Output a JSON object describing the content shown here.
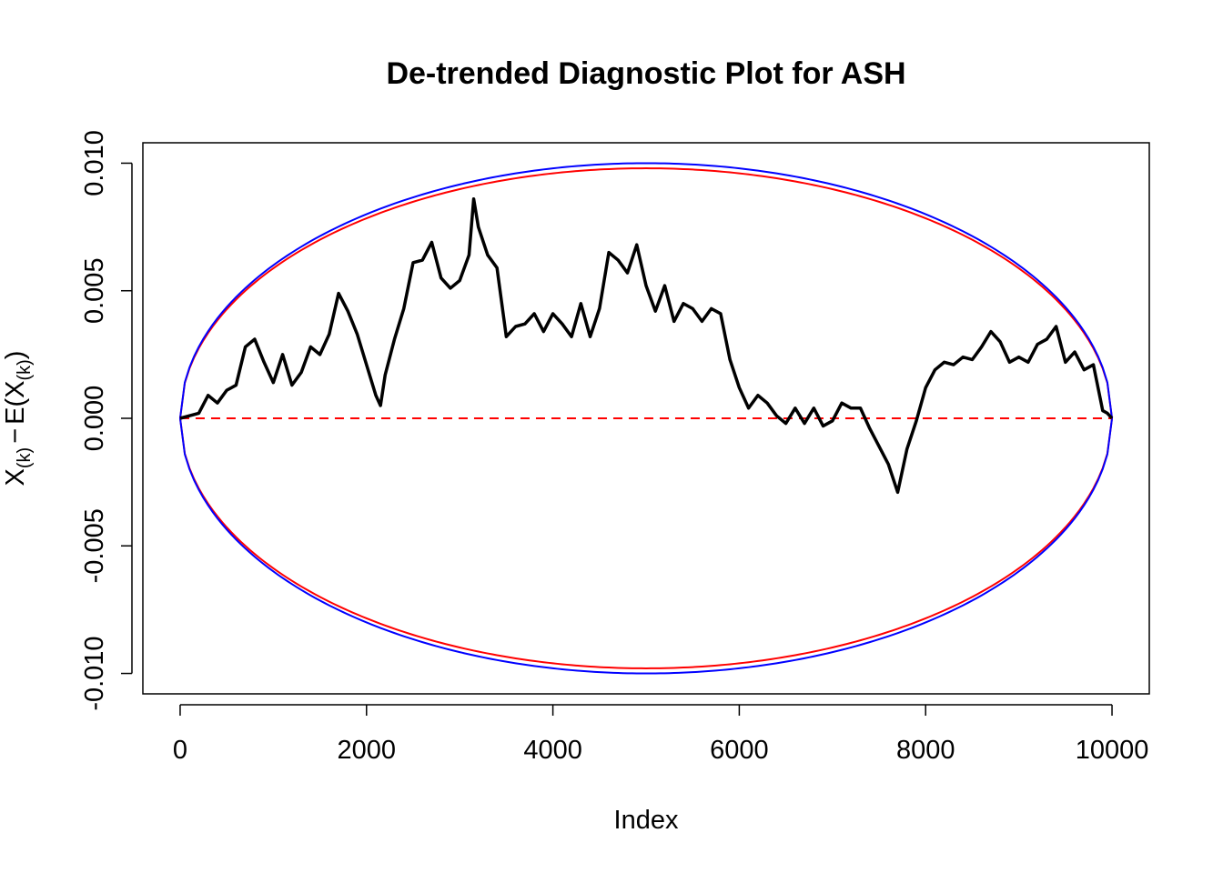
{
  "chart_data": {
    "type": "line",
    "title": "De-trended Diagnostic Plot for ASH",
    "xlabel": "Index",
    "ylabel": {
      "main": "X",
      "sub": "(k)",
      "minus": "−",
      "expect": "E(X",
      "expect_sub": "(k)",
      "close": ")"
    },
    "xlim": [
      -400,
      10400
    ],
    "ylim": [
      -0.0108,
      0.0108
    ],
    "x_ticks": [
      0,
      2000,
      4000,
      6000,
      8000,
      10000
    ],
    "x_tick_labels": [
      "0",
      "2000",
      "4000",
      "6000",
      "8000",
      "10000"
    ],
    "y_ticks": [
      -0.01,
      -0.005,
      0.0,
      0.005,
      0.01
    ],
    "y_tick_labels": [
      "-0.010",
      "-0.005",
      "0.000",
      "0.005",
      "0.010"
    ],
    "colors": {
      "data": "#000000",
      "envelope_blue": "#0000ff",
      "envelope_red": "#ff0000",
      "reference": "#ff0000"
    },
    "envelope_blue": {
      "x_range": [
        0,
        10000
      ],
      "amplitude": 0.01
    },
    "envelope_red": {
      "x_range": [
        0,
        10000
      ],
      "amplitude": 0.0098
    },
    "reference_line": {
      "y": 0.0,
      "style": "dashed"
    },
    "series": [
      {
        "x": [
          0,
          100,
          200,
          300,
          400,
          500,
          600,
          700,
          800,
          900,
          1000,
          1100,
          1200,
          1300,
          1400,
          1500,
          1600,
          1700,
          1800,
          1900,
          2000,
          2100,
          2150,
          2200,
          2300,
          2400,
          2500,
          2600,
          2700,
          2800,
          2900,
          3000,
          3100,
          3150,
          3200,
          3300,
          3400,
          3500,
          3600,
          3700,
          3800,
          3900,
          4000,
          4100,
          4200,
          4300,
          4400,
          4500,
          4600,
          4700,
          4800,
          4900,
          5000,
          5100,
          5200,
          5300,
          5400,
          5500,
          5600,
          5700,
          5800,
          5900,
          6000,
          6100,
          6200,
          6300,
          6400,
          6500,
          6600,
          6700,
          6800,
          6900,
          7000,
          7100,
          7200,
          7300,
          7400,
          7500,
          7600,
          7700,
          7800,
          7900,
          8000,
          8100,
          8200,
          8300,
          8400,
          8500,
          8600,
          8700,
          8800,
          8900,
          9000,
          9100,
          9200,
          9300,
          9400,
          9500,
          9600,
          9700,
          9800,
          9900,
          9950,
          10000
        ],
        "y": [
          0.0,
          0.0001,
          0.0002,
          0.0009,
          0.0006,
          0.0011,
          0.0013,
          0.0028,
          0.0031,
          0.0022,
          0.0014,
          0.0025,
          0.0013,
          0.0018,
          0.0028,
          0.0025,
          0.0033,
          0.0049,
          0.0042,
          0.0033,
          0.0021,
          0.0009,
          0.0005,
          0.0017,
          0.0031,
          0.0043,
          0.0061,
          0.0062,
          0.0069,
          0.0055,
          0.0051,
          0.0054,
          0.0064,
          0.0086,
          0.0075,
          0.0064,
          0.0059,
          0.0032,
          0.0036,
          0.0037,
          0.0041,
          0.0034,
          0.0041,
          0.0037,
          0.0032,
          0.0045,
          0.0032,
          0.0043,
          0.0065,
          0.0062,
          0.0057,
          0.0068,
          0.0052,
          0.0042,
          0.0052,
          0.0038,
          0.0045,
          0.0043,
          0.0038,
          0.0043,
          0.0041,
          0.0023,
          0.0012,
          0.0004,
          0.0009,
          0.0006,
          0.0001,
          -0.0002,
          0.0004,
          -0.0002,
          0.0004,
          -0.0003,
          -0.0001,
          0.0006,
          0.0004,
          0.0004,
          -0.0004,
          -0.0011,
          -0.0018,
          -0.0029,
          -0.0012,
          -0.0001,
          0.0012,
          0.0019,
          0.0022,
          0.0021,
          0.0024,
          0.0023,
          0.0028,
          0.0034,
          0.003,
          0.0022,
          0.0024,
          0.0022,
          0.0029,
          0.0031,
          0.0036,
          0.0022,
          0.0026,
          0.0019,
          0.0021,
          0.0003,
          0.0002,
          0.0
        ]
      }
    ]
  }
}
